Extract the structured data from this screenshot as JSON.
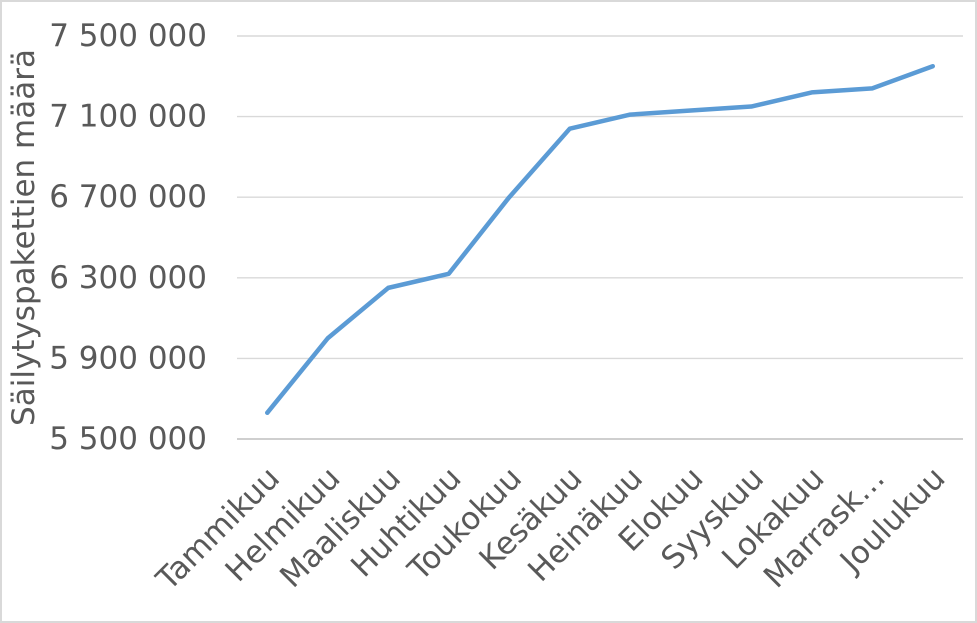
{
  "chart_data": {
    "type": "line",
    "title": "",
    "xlabel": "",
    "ylabel": "Säilytyspakettien määrä",
    "categories": [
      "Tammikuu",
      "Helmikuu",
      "Maaliskuu",
      "Huhtikuu",
      "Toukokuu",
      "Kesäkuu",
      "Heinäkuu",
      "Elokuu",
      "Syyskuu",
      "Lokakuu",
      "Marraskuu",
      "Joulukuu"
    ],
    "x_tick_labels": [
      "Tammikuu",
      "Helmikuu",
      "Maaliskuu",
      "Huhtikuu",
      "Toukokuu",
      "Kesäkuu",
      "Heinäkuu",
      "Elokuu",
      "Syyskuu",
      "Lokakuu",
      "Marrask…",
      "Joulukuu"
    ],
    "series": [
      {
        "name": "Säilytyspakettien määrä",
        "values": [
          5630000,
          6000000,
          6250000,
          6320000,
          6700000,
          7040000,
          7110000,
          7130000,
          7150000,
          7220000,
          7240000,
          7350000
        ]
      }
    ],
    "ylim": [
      5500000,
      7500000
    ],
    "y_tick_step": 400000,
    "y_tick_labels": [
      "5 500 000",
      "5 900 000",
      "6 300 000",
      "6 700 000",
      "7 100 000",
      "7 500 000"
    ],
    "grid": true,
    "legend": "none",
    "colors": {
      "line": "#5B9BD5",
      "gridline": "#D9D9D9",
      "axis_line": "#BFBFBF",
      "text": "#595959",
      "plot_bg": "#FFFFFF",
      "canvas_border": "#D9D9D9"
    }
  }
}
